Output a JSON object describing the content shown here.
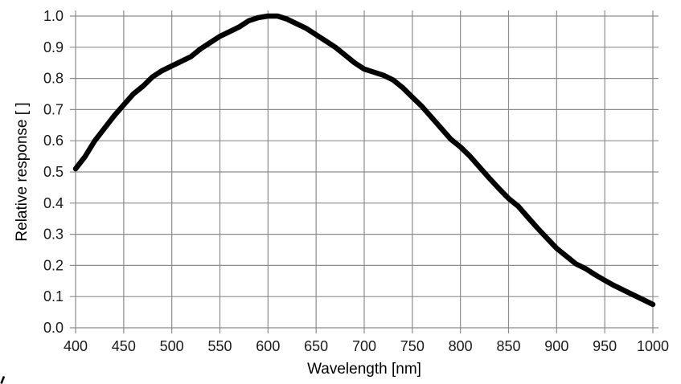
{
  "chart": {
    "x_axis_title": "Wavelength [nm]",
    "y_axis_title": "Relative response [ ]"
  },
  "colors": {
    "background": "#ffffff",
    "grid": "#8c8c8c",
    "curve": "#000000",
    "text": "#1a1a1a"
  },
  "chart_data": {
    "type": "line",
    "title": "",
    "xlabel": "Wavelength [nm]",
    "ylabel": "Relative response [ ]",
    "xlim": [
      400,
      1000
    ],
    "ylim": [
      0.0,
      1.0
    ],
    "grid": true,
    "legend": "none",
    "x_tick_labels": [
      "400",
      "450",
      "500",
      "550",
      "600",
      "650",
      "700",
      "750",
      "800",
      "850",
      "900",
      "950",
      "1000"
    ],
    "y_tick_labels": [
      "0.0",
      "0.1",
      "0.2",
      "0.3",
      "0.4",
      "0.5",
      "0.6",
      "0.7",
      "0.8",
      "0.9",
      "1.0"
    ],
    "series": [
      {
        "name": "relative-response",
        "x": [
          400,
          410,
          420,
          430,
          440,
          450,
          460,
          470,
          480,
          490,
          500,
          510,
          520,
          530,
          540,
          550,
          560,
          570,
          580,
          590,
          600,
          610,
          620,
          630,
          640,
          650,
          660,
          670,
          680,
          690,
          700,
          710,
          720,
          730,
          740,
          750,
          760,
          770,
          780,
          790,
          800,
          810,
          820,
          830,
          840,
          850,
          860,
          870,
          880,
          890,
          900,
          910,
          920,
          930,
          940,
          950,
          960,
          970,
          980,
          990,
          1000
        ],
        "y": [
          0.51,
          0.55,
          0.6,
          0.64,
          0.68,
          0.715,
          0.75,
          0.775,
          0.805,
          0.825,
          0.84,
          0.855,
          0.87,
          0.895,
          0.915,
          0.935,
          0.95,
          0.965,
          0.985,
          0.995,
          1.0,
          1.0,
          0.99,
          0.975,
          0.96,
          0.94,
          0.92,
          0.9,
          0.875,
          0.85,
          0.83,
          0.82,
          0.81,
          0.795,
          0.77,
          0.74,
          0.71,
          0.675,
          0.64,
          0.605,
          0.58,
          0.55,
          0.515,
          0.48,
          0.447,
          0.415,
          0.39,
          0.355,
          0.32,
          0.287,
          0.255,
          0.23,
          0.205,
          0.19,
          0.17,
          0.152,
          0.135,
          0.12,
          0.105,
          0.09,
          0.075
        ]
      }
    ]
  }
}
